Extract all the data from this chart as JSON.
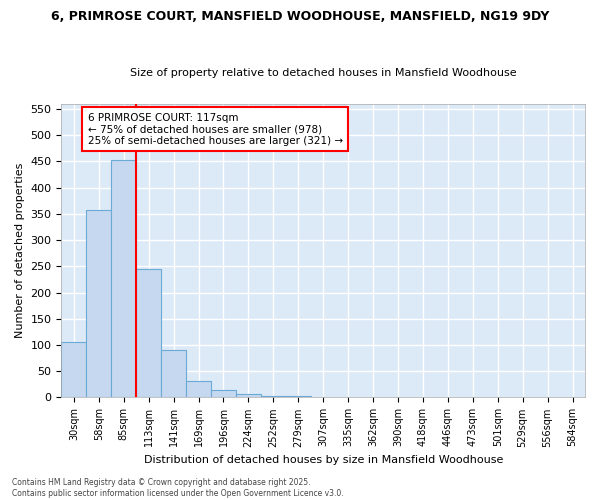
{
  "title": "6, PRIMROSE COURT, MANSFIELD WOODHOUSE, MANSFIELD, NG19 9DY",
  "subtitle": "Size of property relative to detached houses in Mansfield Woodhouse",
  "xlabel": "Distribution of detached houses by size in Mansfield Woodhouse",
  "ylabel": "Number of detached properties",
  "categories": [
    "30sqm",
    "58sqm",
    "85sqm",
    "113sqm",
    "141sqm",
    "169sqm",
    "196sqm",
    "224sqm",
    "252sqm",
    "279sqm",
    "307sqm",
    "335sqm",
    "362sqm",
    "390sqm",
    "418sqm",
    "446sqm",
    "473sqm",
    "501sqm",
    "529sqm",
    "556sqm",
    "584sqm"
  ],
  "values": [
    105,
    357,
    453,
    245,
    90,
    32,
    14,
    7,
    3,
    2,
    1,
    0,
    0,
    0,
    0,
    0,
    0,
    0,
    0,
    0,
    1
  ],
  "bar_color": "#c5d8f0",
  "bar_edge_color": "#6aaad4",
  "plot_bg_color": "#dce9f7",
  "fig_bg_color": "#ffffff",
  "grid_color": "#ffffff",
  "red_line_x": 2.5,
  "annotation_title": "6 PRIMROSE COURT: 117sqm",
  "annotation_line1": "← 75% of detached houses are smaller (978)",
  "annotation_line2": "25% of semi-detached houses are larger (321) →",
  "footer_line1": "Contains HM Land Registry data © Crown copyright and database right 2025.",
  "footer_line2": "Contains public sector information licensed under the Open Government Licence v3.0.",
  "ylim": [
    0,
    560
  ],
  "yticks": [
    0,
    50,
    100,
    150,
    200,
    250,
    300,
    350,
    400,
    450,
    500,
    550
  ]
}
